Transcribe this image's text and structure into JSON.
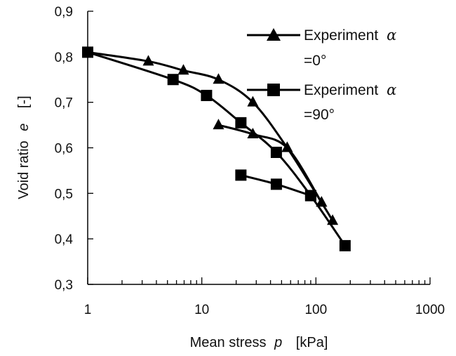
{
  "chart_data": {
    "type": "line",
    "xlabel": "Mean stress p [kPa]",
    "ylabel": "Void ratio e [-]",
    "xscale": "log",
    "xlim": [
      1,
      1000
    ],
    "ylim": [
      0.3,
      0.9
    ],
    "x_ticks": [
      "1",
      "10",
      "100",
      "1000"
    ],
    "y_ticks": [
      "0,3",
      "0,4",
      "0,5",
      "0,6",
      "0,7",
      "0,8",
      "0,9"
    ],
    "grid": false,
    "legend_position": "top-right",
    "series": [
      {
        "name": "Experiment α =0°",
        "marker": "triangle",
        "color": "#000000",
        "points": [
          {
            "x": 1,
            "y": 0.81
          },
          {
            "x": 3.4,
            "y": 0.79
          },
          {
            "x": 6.9,
            "y": 0.77
          },
          {
            "x": 14,
            "y": 0.75
          },
          {
            "x": 28,
            "y": 0.7
          },
          {
            "x": 56,
            "y": 0.6
          },
          {
            "x": 112,
            "y": 0.48
          },
          {
            "x": 140,
            "y": 0.44
          }
        ],
        "unloading": [
          {
            "x": 112,
            "y": 0.48
          },
          {
            "x": 56,
            "y": 0.6
          },
          {
            "x": 28,
            "y": 0.63
          },
          {
            "x": 14,
            "y": 0.65
          }
        ]
      },
      {
        "name": "Experiment α =90°",
        "marker": "square",
        "color": "#000000",
        "points": [
          {
            "x": 1,
            "y": 0.81
          },
          {
            "x": 5.6,
            "y": 0.75
          },
          {
            "x": 11,
            "y": 0.715
          },
          {
            "x": 22,
            "y": 0.655
          },
          {
            "x": 45,
            "y": 0.59
          },
          {
            "x": 90,
            "y": 0.495
          },
          {
            "x": 180,
            "y": 0.385
          }
        ],
        "unloading": [
          {
            "x": 90,
            "y": 0.495
          },
          {
            "x": 45,
            "y": 0.52
          },
          {
            "x": 22,
            "y": 0.54
          }
        ]
      }
    ]
  },
  "labels": {
    "y_axis_prefix": "Void ratio",
    "y_axis_symbol": "e",
    "y_axis_unit": "[-]",
    "x_axis_prefix": "Mean stress",
    "x_axis_symbol": "p",
    "x_axis_unit": "[kPa]",
    "legend_0_line1": "Experiment",
    "legend_0_symbol": "α",
    "legend_0_line2": "=0°",
    "legend_1_line1": "Experiment",
    "legend_1_symbol": "α",
    "legend_1_line2": "=90°"
  }
}
